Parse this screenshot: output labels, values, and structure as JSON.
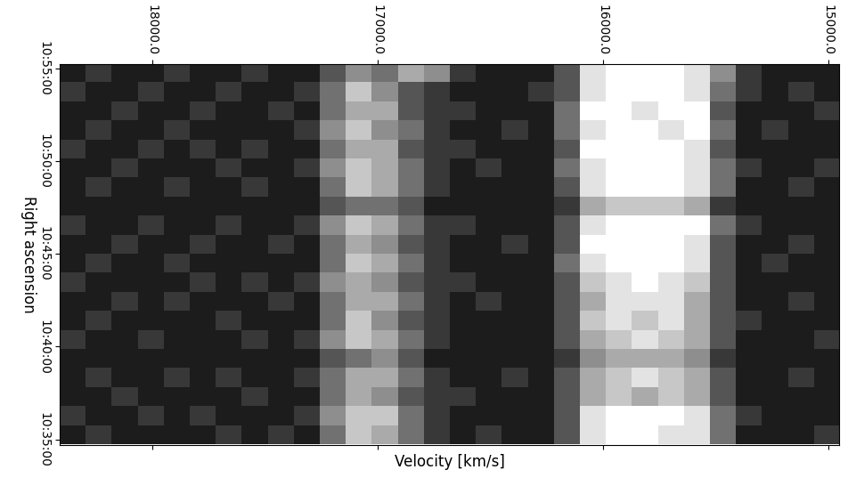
{
  "chart_data": {
    "type": "heatmap",
    "xlabel": "Velocity [km/s]",
    "ylabel": "Right ascension",
    "xlim": [
      18412,
      14949
    ],
    "ylim": [
      38083,
      39314
    ],
    "xticks": [
      {
        "value": 18000,
        "label": "18000.0"
      },
      {
        "value": 17000,
        "label": "17000.0"
      },
      {
        "value": 16000,
        "label": "16000.0"
      },
      {
        "value": 15000,
        "label": "15000.0"
      }
    ],
    "yticks": [
      {
        "value": 38100,
        "label": "10:35:00"
      },
      {
        "value": 38400,
        "label": "10:40:00"
      },
      {
        "value": 38700,
        "label": "10:45:00"
      },
      {
        "value": 39000,
        "label": "10:50:00"
      },
      {
        "value": 39300,
        "label": "10:55:00"
      }
    ],
    "color": "gray",
    "clim": [
      0,
      9
    ],
    "cells": [
      [
        1,
        2,
        1,
        1,
        2,
        1,
        1,
        2,
        1,
        1,
        3,
        5,
        4,
        6,
        5,
        2,
        1,
        1,
        1,
        3,
        8,
        9,
        9,
        9,
        8,
        5,
        2,
        1,
        1,
        1
      ],
      [
        2,
        1,
        1,
        2,
        1,
        1,
        2,
        1,
        1,
        2,
        4,
        7,
        5,
        3,
        2,
        1,
        1,
        1,
        2,
        3,
        8,
        9,
        9,
        9,
        8,
        4,
        2,
        1,
        2,
        1
      ],
      [
        1,
        1,
        2,
        1,
        1,
        2,
        1,
        1,
        2,
        1,
        4,
        6,
        6,
        3,
        2,
        2,
        1,
        1,
        1,
        4,
        9,
        9,
        8,
        9,
        9,
        3,
        1,
        1,
        1,
        2
      ],
      [
        1,
        2,
        1,
        1,
        2,
        1,
        1,
        1,
        1,
        2,
        5,
        7,
        5,
        4,
        2,
        1,
        1,
        2,
        1,
        4,
        8,
        9,
        9,
        8,
        9,
        4,
        1,
        2,
        1,
        1
      ],
      [
        2,
        1,
        1,
        2,
        1,
        2,
        1,
        2,
        1,
        1,
        4,
        6,
        6,
        3,
        2,
        2,
        1,
        1,
        1,
        3,
        9,
        9,
        9,
        9,
        8,
        3,
        1,
        1,
        1,
        1
      ],
      [
        1,
        1,
        2,
        1,
        1,
        1,
        2,
        1,
        1,
        2,
        5,
        7,
        6,
        4,
        2,
        1,
        2,
        1,
        1,
        4,
        8,
        9,
        9,
        9,
        8,
        4,
        2,
        1,
        1,
        2
      ],
      [
        1,
        2,
        1,
        1,
        2,
        1,
        1,
        2,
        1,
        1,
        4,
        7,
        6,
        4,
        2,
        1,
        1,
        1,
        1,
        3,
        8,
        9,
        9,
        9,
        8,
        4,
        1,
        1,
        2,
        1
      ],
      [
        1,
        1,
        1,
        1,
        1,
        1,
        1,
        1,
        1,
        1,
        3,
        4,
        4,
        3,
        1,
        1,
        1,
        1,
        1,
        2,
        6,
        7,
        7,
        7,
        6,
        2,
        1,
        1,
        1,
        1
      ],
      [
        2,
        1,
        1,
        2,
        1,
        1,
        2,
        1,
        1,
        2,
        5,
        7,
        6,
        4,
        2,
        2,
        1,
        1,
        1,
        3,
        8,
        9,
        9,
        9,
        9,
        4,
        2,
        1,
        1,
        1
      ],
      [
        1,
        1,
        2,
        1,
        1,
        2,
        1,
        1,
        2,
        1,
        4,
        6,
        5,
        3,
        2,
        1,
        1,
        2,
        1,
        3,
        9,
        9,
        9,
        9,
        8,
        3,
        1,
        1,
        2,
        1
      ],
      [
        1,
        2,
        1,
        1,
        2,
        1,
        1,
        1,
        1,
        1,
        4,
        7,
        6,
        4,
        2,
        1,
        1,
        1,
        1,
        4,
        8,
        9,
        9,
        9,
        8,
        3,
        1,
        2,
        1,
        1
      ],
      [
        2,
        1,
        1,
        1,
        1,
        2,
        1,
        2,
        1,
        2,
        5,
        6,
        5,
        3,
        2,
        2,
        1,
        1,
        1,
        3,
        7,
        8,
        9,
        8,
        7,
        3,
        1,
        1,
        1,
        1
      ],
      [
        1,
        1,
        2,
        1,
        2,
        1,
        1,
        1,
        2,
        1,
        4,
        6,
        6,
        4,
        2,
        1,
        2,
        1,
        1,
        3,
        6,
        8,
        8,
        8,
        6,
        3,
        1,
        1,
        2,
        1
      ],
      [
        1,
        2,
        1,
        1,
        1,
        1,
        2,
        1,
        1,
        1,
        4,
        7,
        5,
        3,
        2,
        1,
        1,
        1,
        1,
        3,
        7,
        8,
        7,
        8,
        6,
        3,
        2,
        1,
        1,
        1
      ],
      [
        2,
        1,
        1,
        2,
        1,
        1,
        1,
        2,
        1,
        2,
        5,
        7,
        6,
        4,
        2,
        1,
        1,
        1,
        1,
        3,
        6,
        7,
        8,
        7,
        6,
        3,
        1,
        1,
        1,
        2
      ],
      [
        1,
        1,
        1,
        1,
        1,
        1,
        1,
        1,
        1,
        1,
        3,
        4,
        5,
        3,
        1,
        1,
        1,
        1,
        1,
        2,
        5,
        6,
        6,
        6,
        5,
        2,
        1,
        1,
        1,
        1
      ],
      [
        1,
        2,
        1,
        1,
        2,
        1,
        2,
        1,
        1,
        2,
        4,
        6,
        6,
        4,
        2,
        1,
        1,
        2,
        1,
        3,
        6,
        7,
        8,
        7,
        6,
        3,
        1,
        1,
        2,
        1
      ],
      [
        1,
        1,
        2,
        1,
        1,
        1,
        1,
        2,
        1,
        1,
        4,
        6,
        5,
        3,
        2,
        2,
        1,
        1,
        1,
        3,
        6,
        7,
        6,
        7,
        6,
        3,
        1,
        1,
        1,
        1
      ],
      [
        2,
        1,
        1,
        2,
        1,
        2,
        1,
        1,
        1,
        2,
        5,
        7,
        7,
        4,
        2,
        1,
        1,
        1,
        1,
        3,
        8,
        9,
        9,
        9,
        8,
        4,
        2,
        1,
        1,
        1
      ],
      [
        1,
        2,
        1,
        1,
        1,
        1,
        2,
        1,
        2,
        1,
        4,
        7,
        6,
        4,
        2,
        1,
        2,
        1,
        1,
        3,
        8,
        9,
        9,
        8,
        8,
        4,
        1,
        1,
        1,
        2
      ]
    ]
  }
}
